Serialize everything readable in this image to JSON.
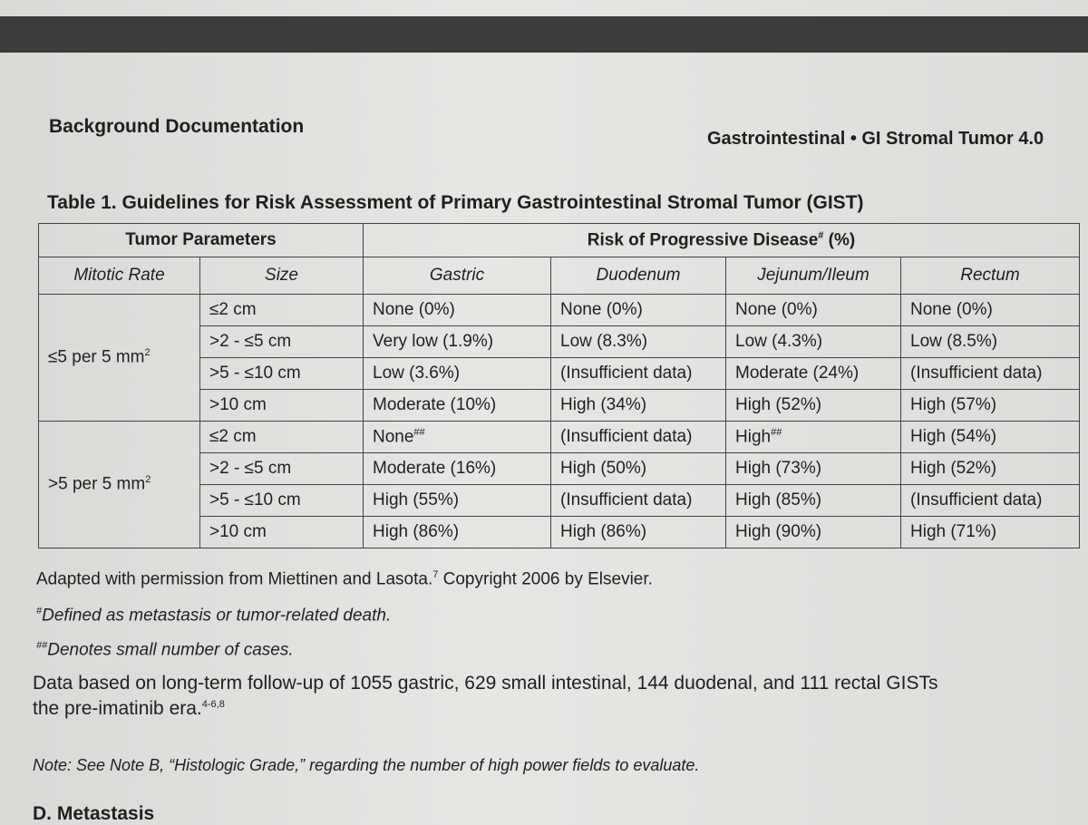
{
  "header": {
    "left": "Background Documentation",
    "right": "Gastrointestinal • GI Stromal Tumor 4.0"
  },
  "table": {
    "title": "Table 1. Guidelines for Risk Assessment of Primary Gastrointestinal Stromal Tumor (GIST)",
    "group_headers": [
      "Tumor Parameters",
      {
        "text": "Risk of Progressive Disease",
        "sup": "#",
        "after": " (%)"
      }
    ],
    "columns": [
      "Mitotic Rate",
      "Size",
      "Gastric",
      "Duodenum",
      "Jejunum/Ileum",
      "Rectum"
    ],
    "groups": [
      {
        "mitotic_rate": {
          "text": "≤5 per 5 mm",
          "sup": "2"
        },
        "rows": [
          [
            "≤2 cm",
            "None (0%)",
            "None (0%)",
            "None (0%)",
            "None (0%)"
          ],
          [
            ">2 - ≤5 cm",
            "Very low (1.9%)",
            "Low (8.3%)",
            "Low (4.3%)",
            "Low (8.5%)"
          ],
          [
            ">5 - ≤10 cm",
            "Low (3.6%)",
            "(Insufficient data)",
            "Moderate (24%)",
            "(Insufficient data)"
          ],
          [
            ">10 cm",
            "Moderate (10%)",
            "High (34%)",
            "High (52%)",
            "High (57%)"
          ]
        ]
      },
      {
        "mitotic_rate": {
          "text": ">5 per 5 mm",
          "sup": "2"
        },
        "rows": [
          [
            "≤2 cm",
            {
              "text": "None",
              "sup": "##"
            },
            "(Insufficient data)",
            {
              "text": "High",
              "sup": "##"
            },
            "High (54%)"
          ],
          [
            ">2 - ≤5 cm",
            "Moderate (16%)",
            "High (50%)",
            "High (73%)",
            "High (52%)"
          ],
          [
            ">5 - ≤10 cm",
            "High (55%)",
            "(Insufficient data)",
            "High (85%)",
            "(Insufficient data)"
          ],
          [
            ">10 cm",
            "High (86%)",
            "High (86%)",
            "High (90%)",
            "High (71%)"
          ]
        ]
      }
    ]
  },
  "footnotes": {
    "source": {
      "text": "Adapted with permission from Miettinen and Lasota.",
      "sup": "7",
      "after": " Copyright 2006 by Elsevier."
    },
    "note_1": {
      "mark": "#",
      "text": "Defined as metastasis or tumor-related death."
    },
    "note_2": {
      "mark": "##",
      "text": "Denotes small number of cases."
    },
    "data_line_1": "Data based on long-term follow-up of 1055 gastric, 629 small intestinal, 144 duodenal, and 111 rectal GISTs",
    "data_line_2": {
      "text": "the pre-imatinib era.",
      "sup": "4-6,8"
    },
    "note_b": "Note: See Note B, “Histologic Grade,” regarding the number of high power fields to evaluate."
  },
  "section_heading": "D. Metastasis"
}
